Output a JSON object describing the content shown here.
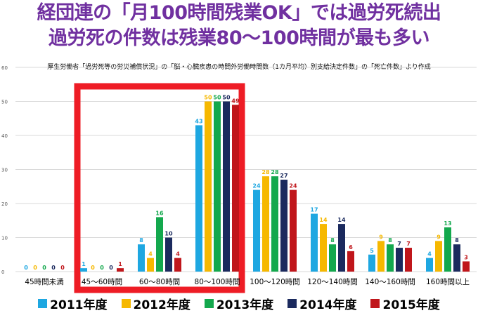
{
  "title_lines": [
    "経団連の「月100時間残業OK」では過労死続出",
    "過労死の件数は残業80～100時間が最も多い"
  ],
  "source_note": "厚生労働省「過労死等の労災補償状況」の「脳・心臓疾患の時間外労働時間数（1カ月平均）別支給決定件数」の「死亡件数」より作成",
  "chart_data": {
    "type": "bar",
    "title": "",
    "xlabel": "",
    "ylabel": "",
    "ylim": [
      0,
      60
    ],
    "yticks": [
      0,
      10,
      20,
      30,
      40,
      50,
      60
    ],
    "grid": true,
    "legend_position": "bottom",
    "categories": [
      "45時間未満",
      "45～60時間",
      "60～80時間",
      "80～100時間",
      "100～120時間",
      "120～140時間",
      "140～160時間",
      "160時間以上"
    ],
    "series": [
      {
        "name": "2011年度",
        "color": "#1ea7e1",
        "values": [
          0,
          1,
          8,
          43,
          24,
          17,
          5,
          4
        ]
      },
      {
        "name": "2012年度",
        "color": "#f6b800",
        "values": [
          0,
          0,
          4,
          50,
          28,
          14,
          9,
          9
        ]
      },
      {
        "name": "2013年度",
        "color": "#13a84d",
        "values": [
          0,
          0,
          16,
          50,
          28,
          8,
          8,
          13
        ]
      },
      {
        "name": "2014年度",
        "color": "#1b2a5e",
        "values": [
          0,
          0,
          10,
          50,
          27,
          14,
          7,
          8
        ]
      },
      {
        "name": "2015年度",
        "color": "#c0161b",
        "values": [
          0,
          1,
          4,
          49,
          24,
          6,
          7,
          3
        ]
      }
    ],
    "highlight": {
      "categories": [
        "45～60時間",
        "60～80時間",
        "80～100時間"
      ],
      "color": "#ee1c25"
    }
  }
}
